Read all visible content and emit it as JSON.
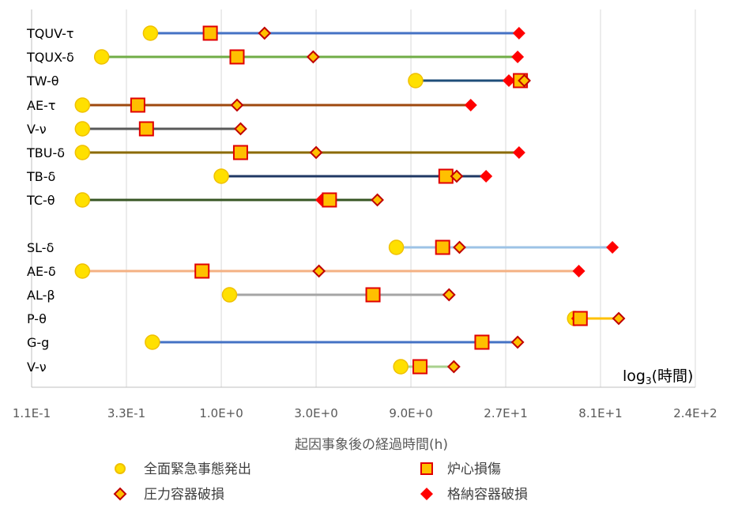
{
  "chart_data": {
    "type": "scatter",
    "title": "",
    "xlabel": "起因事象後の経過時間(h)",
    "ylabel": "",
    "x_scale": "log3",
    "xlim": [
      0.111,
      243
    ],
    "x_ticks": [
      0.111,
      0.333,
      1.0,
      3.0,
      9.0,
      27.0,
      81.0,
      243.0
    ],
    "x_tick_labels": [
      "1.1E-1",
      "3.3E-1",
      "1.0E+0",
      "3.0E+0",
      "9.0E+0",
      "2.7E+1",
      "8.1E+1",
      "2.4E+2"
    ],
    "grid": true,
    "annotation": {
      "main": "log",
      "sub": "3",
      "suffix": "(時間)"
    },
    "legend_position": "bottom",
    "legend": [
      {
        "key": "emergency",
        "label": "全面緊急事態発出"
      },
      {
        "key": "core",
        "label": "炉心損傷"
      },
      {
        "key": "rpv",
        "label": "圧力容器破損"
      },
      {
        "key": "pcv",
        "label": "格納容器破損"
      }
    ],
    "colors": {
      "emergency_fill": "#FFE000",
      "emergency_stroke": "#F0C000",
      "core_fill": "#FFC000",
      "core_stroke": "#E00000",
      "rpv_fill": "#FFC000",
      "rpv_stroke": "#C00000",
      "pcv_fill": "#FF0000",
      "grid": "#D9D9D9",
      "axis": "#BFBFBF"
    },
    "rows": [
      {
        "label": "TQUV-τ",
        "color": "#4472C4",
        "emergency": 0.44,
        "core": 0.88,
        "rpv": 1.65,
        "pcv": 31.5
      },
      {
        "label": "TQUX-δ",
        "color": "#70AD47",
        "emergency": 0.25,
        "core": 1.2,
        "rpv": 2.9,
        "pcv": 31.0
      },
      {
        "label": "TW-θ",
        "color": "#1F4E79",
        "emergency": 9.5,
        "core": 32.0,
        "rpv": 33.5,
        "pcv": 28.0
      },
      {
        "label": "AE-τ",
        "color": "#9E480E",
        "emergency": 0.2,
        "core": 0.38,
        "rpv": 1.2,
        "pcv": 18.0
      },
      {
        "label": "V-ν",
        "color": "#595959",
        "emergency": 0.2,
        "core": 0.42,
        "rpv": 1.25,
        "pcv": 1.25
      },
      {
        "label": "TBU-δ",
        "color": "#8B6A00",
        "emergency": 0.2,
        "core": 1.25,
        "rpv": 3.0,
        "pcv": 31.5
      },
      {
        "label": "TB-δ",
        "color": "#1F3864",
        "emergency": 1.0,
        "core": 13.5,
        "rpv": 15.3,
        "pcv": 21.5
      },
      {
        "label": "TC-θ",
        "color": "#375623",
        "emergency": 0.2,
        "core": 3.5,
        "rpv": 6.1,
        "pcv": 3.2
      },
      {
        "label": "SL-δ",
        "color": "#9DC3E6",
        "emergency": 7.6,
        "core": 13.0,
        "rpv": 15.8,
        "pcv": 93.0
      },
      {
        "label": "AE-δ",
        "color": "#F4B183",
        "emergency": 0.2,
        "core": 0.8,
        "rpv": 3.1,
        "pcv": 63.0
      },
      {
        "label": "AL-β",
        "color": "#A5A5A5",
        "emergency": 1.1,
        "core": 5.8,
        "rpv": 14.0,
        "pcv": 14.0
      },
      {
        "label": "P-θ",
        "color": "#FFC000",
        "emergency": 60.0,
        "core": 64.0,
        "rpv": 100.0,
        "pcv": 62.0
      },
      {
        "label": "G-g",
        "color": "#4472C4",
        "emergency": 0.45,
        "core": 20.5,
        "rpv": 31.0,
        "pcv": 31.0
      },
      {
        "label": "V-ν",
        "color": "#A9D18E",
        "emergency": 8.0,
        "core": 10.0,
        "rpv": 14.8,
        "pcv": 14.8
      }
    ]
  }
}
